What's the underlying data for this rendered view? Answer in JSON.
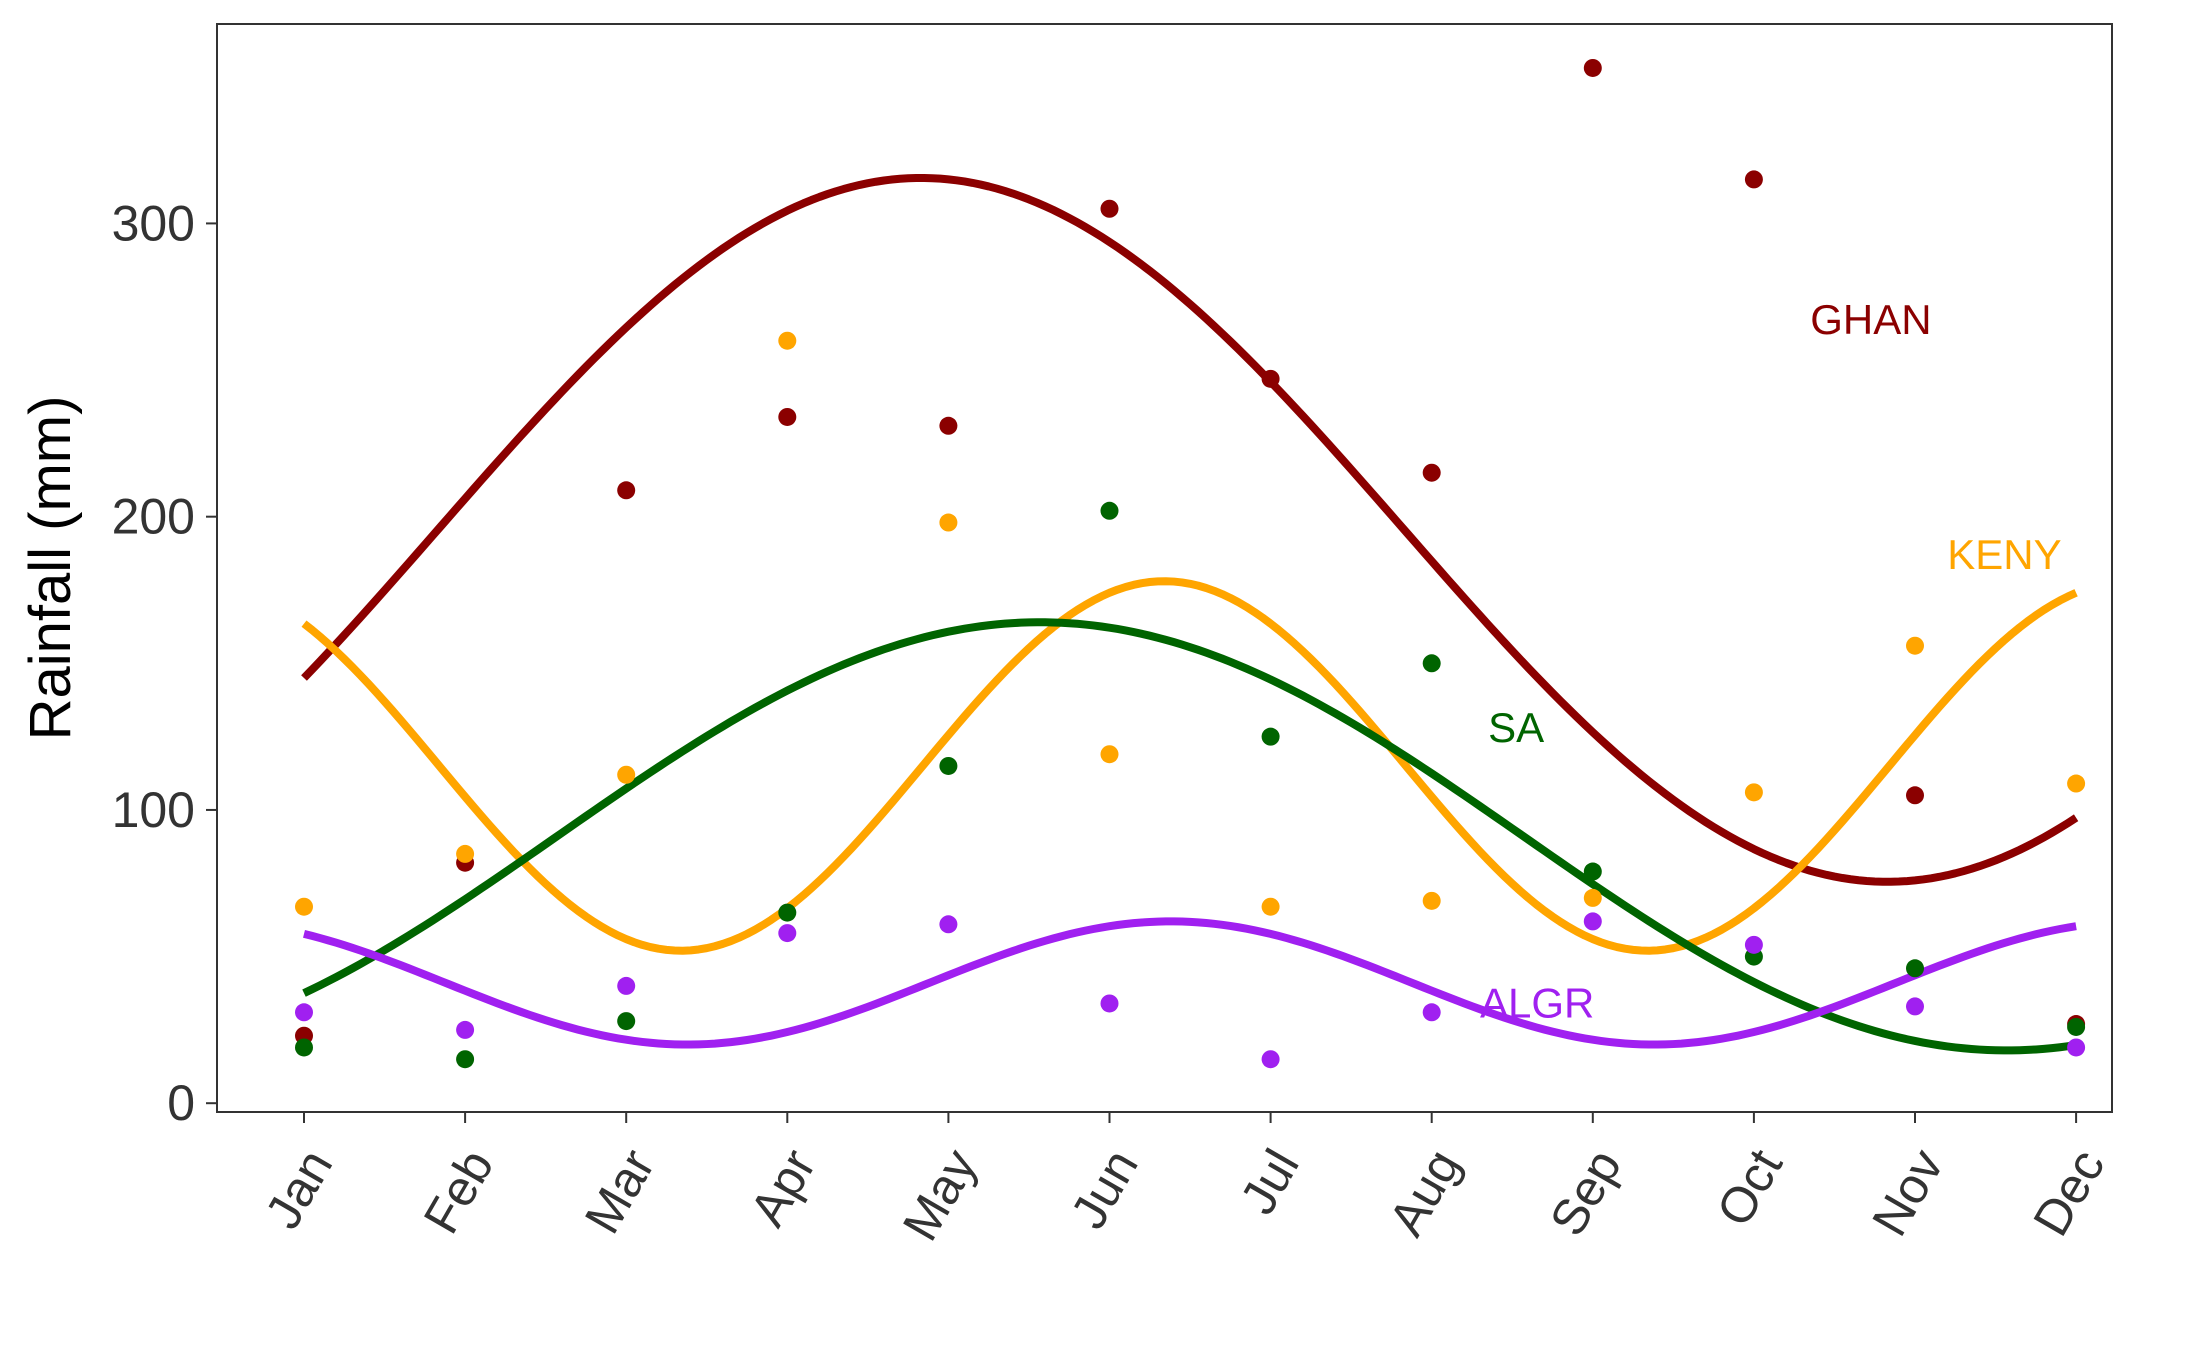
{
  "chart_data": {
    "type": "scatter",
    "title": "",
    "xlabel": "",
    "ylabel": "Rainfall (mm)",
    "categories": [
      "Jan",
      "Feb",
      "Mar",
      "Apr",
      "May",
      "Jun",
      "Jul",
      "Aug",
      "Sep",
      "Oct",
      "Nov",
      "Dec"
    ],
    "ylim": [
      -3,
      368
    ],
    "yticks": [
      0,
      100,
      200,
      300
    ],
    "grid": false,
    "legend": "none",
    "series": [
      {
        "name": "GHAN",
        "color": "#8B0000",
        "points": [
          23,
          82,
          209,
          234,
          231,
          305,
          247,
          215,
          353,
          315,
          105,
          27
        ],
        "fit": {
          "mean": 195.5,
          "amp1": 120,
          "phase1": 3.83,
          "amp2": 0,
          "phase2": 0
        },
        "label_at": [
          9.35,
          266
        ]
      },
      {
        "name": "KENY",
        "color": "#FFA500",
        "points": [
          67,
          85,
          112,
          260,
          198,
          119,
          67,
          69,
          70,
          106,
          156,
          109
        ],
        "fit": {
          "mean": 115,
          "amp1": 0,
          "phase1": 0,
          "amp2": 63,
          "phase2": -0.66
        },
        "label_at": [
          10.2,
          186
        ]
      },
      {
        "name": "SA",
        "color": "#006400",
        "points": [
          19,
          15,
          28,
          65,
          115,
          202,
          125,
          150,
          79,
          50,
          46,
          26
        ],
        "fit": {
          "mean": 91,
          "amp1": 73,
          "phase1": 4.57,
          "amp2": 0,
          "phase2": 0
        },
        "label_at": [
          7.35,
          127
        ]
      },
      {
        "name": "ALGR",
        "color": "#A020F0",
        "points": [
          31,
          25,
          40,
          58,
          61,
          34,
          15,
          31,
          62,
          54,
          33,
          19
        ],
        "fit": {
          "mean": 41,
          "amp1": 0,
          "phase1": 0,
          "amp2": 21,
          "phase2": -0.62
        },
        "label_at": [
          7.3,
          33
        ]
      }
    ]
  }
}
